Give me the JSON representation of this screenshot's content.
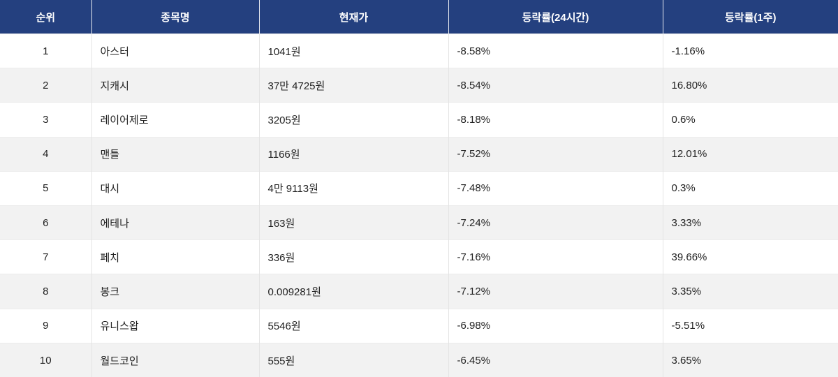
{
  "table": {
    "header": [
      "순위",
      "종목명",
      "현재가",
      "등락률(24시간)",
      "등락률(1주)"
    ],
    "rows": [
      [
        "1",
        "아스터",
        "1041원",
        "-8.58%",
        "-1.16%"
      ],
      [
        "2",
        "지캐시",
        "37만 4725원",
        "-8.54%",
        "16.80%"
      ],
      [
        "3",
        "레이어제로",
        "3205원",
        "-8.18%",
        "0.6%"
      ],
      [
        "4",
        "맨틀",
        "1166원",
        "-7.52%",
        "12.01%"
      ],
      [
        "5",
        "대시",
        "4만 9113원",
        "-7.48%",
        "0.3%"
      ],
      [
        "6",
        "에테나",
        "163원",
        "-7.24%",
        "3.33%"
      ],
      [
        "7",
        "페치",
        "336원",
        "-7.16%",
        "39.66%"
      ],
      [
        "8",
        "봉크",
        "0.009281원",
        "-7.12%",
        "3.35%"
      ],
      [
        "9",
        "유니스왑",
        "5546원",
        "-6.98%",
        "-5.51%"
      ],
      [
        "10",
        "월드코인",
        "555원",
        "-6.45%",
        "3.65%"
      ]
    ]
  }
}
